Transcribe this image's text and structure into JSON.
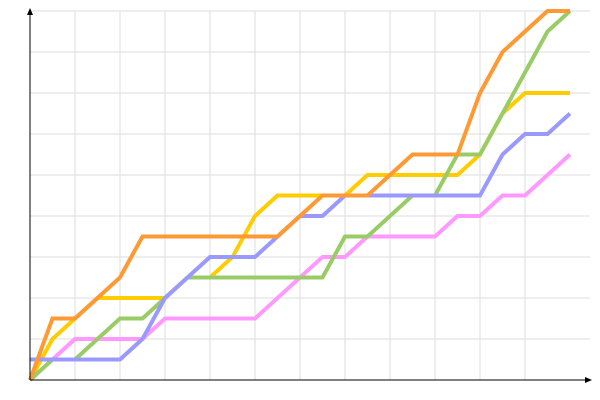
{
  "chart_data": {
    "type": "line",
    "title": "",
    "xlabel": "",
    "ylabel": "",
    "xlim": [
      0,
      12.5
    ],
    "ylim": [
      0,
      9
    ],
    "grid": true,
    "legend": "none",
    "series": [
      {
        "color": "#ff99ff",
        "points": [
          [
            0,
            0
          ],
          [
            1,
            1
          ],
          [
            2.5,
            1
          ],
          [
            3,
            1.5
          ],
          [
            5,
            1.5
          ],
          [
            6.5,
            3
          ],
          [
            7,
            3
          ],
          [
            7.5,
            3.5
          ],
          [
            9,
            3.5
          ],
          [
            9.5,
            4
          ],
          [
            10,
            4
          ],
          [
            10.5,
            4.5
          ],
          [
            11,
            4.5
          ],
          [
            12,
            5.5
          ]
        ]
      },
      {
        "color": "#ffcc00",
        "points": [
          [
            0,
            0
          ],
          [
            0.5,
            1
          ],
          [
            1,
            1.5
          ],
          [
            1.5,
            2
          ],
          [
            3,
            2
          ],
          [
            3.5,
            2.5
          ],
          [
            4,
            2.5
          ],
          [
            4.5,
            3
          ],
          [
            5,
            4
          ],
          [
            5.5,
            4.5
          ],
          [
            7,
            4.5
          ],
          [
            7.5,
            5
          ],
          [
            9.5,
            5
          ],
          [
            10,
            5.5
          ],
          [
            10.5,
            6.5
          ],
          [
            11,
            7
          ],
          [
            12,
            7
          ]
        ]
      },
      {
        "color": "#99cc66",
        "points": [
          [
            0,
            0
          ],
          [
            0.5,
            0.5
          ],
          [
            1,
            0.5
          ],
          [
            2,
            1.5
          ],
          [
            2.5,
            1.5
          ],
          [
            3,
            2
          ],
          [
            3.5,
            2.5
          ],
          [
            6.5,
            2.5
          ],
          [
            7,
            3.5
          ],
          [
            7.5,
            3.5
          ],
          [
            8.5,
            4.5
          ],
          [
            9,
            4.5
          ],
          [
            9.5,
            5.5
          ],
          [
            10,
            5.5
          ],
          [
            10.5,
            6.5
          ],
          [
            11,
            7.5
          ],
          [
            11.5,
            8.5
          ],
          [
            12,
            9
          ]
        ]
      },
      {
        "color": "#9999ff",
        "points": [
          [
            0,
            0.5
          ],
          [
            2,
            0.5
          ],
          [
            2.5,
            1
          ],
          [
            3,
            2
          ],
          [
            3.5,
            2.5
          ],
          [
            4,
            3
          ],
          [
            5,
            3
          ],
          [
            5.5,
            3.5
          ],
          [
            6,
            4
          ],
          [
            6.5,
            4
          ],
          [
            7,
            4.5
          ],
          [
            10,
            4.5
          ],
          [
            10.5,
            5.5
          ],
          [
            11,
            6
          ],
          [
            11.5,
            6
          ],
          [
            12,
            6.5
          ]
        ]
      },
      {
        "color": "#ff9933",
        "points": [
          [
            0,
            0
          ],
          [
            0.5,
            1.5
          ],
          [
            1,
            1.5
          ],
          [
            2,
            2.5
          ],
          [
            2.5,
            3.5
          ],
          [
            5.5,
            3.5
          ],
          [
            6,
            4
          ],
          [
            6.5,
            4.5
          ],
          [
            7.5,
            4.5
          ],
          [
            8.5,
            5.5
          ],
          [
            9.5,
            5.5
          ],
          [
            10,
            7
          ],
          [
            10.5,
            8
          ],
          [
            11,
            8.5
          ],
          [
            11.5,
            9
          ],
          [
            12,
            9
          ]
        ]
      }
    ]
  }
}
